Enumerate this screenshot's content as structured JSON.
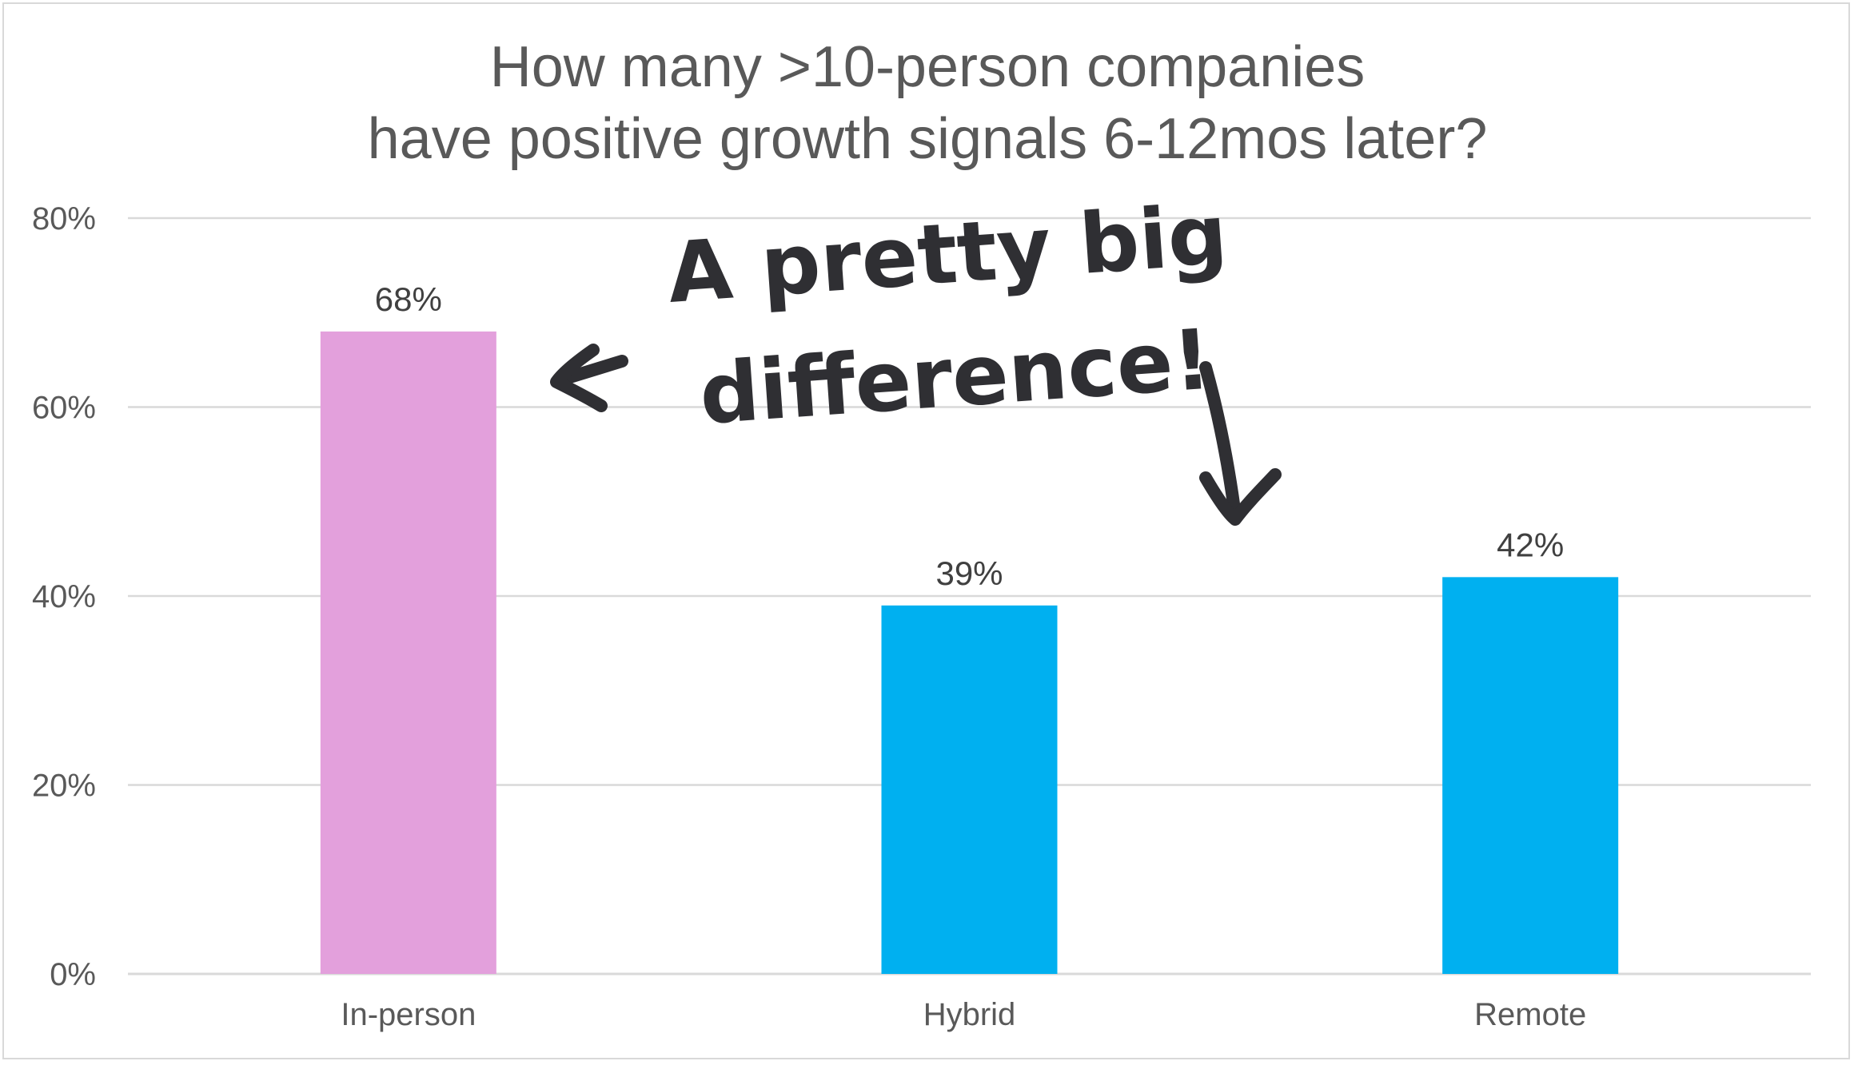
{
  "chart_data": {
    "type": "bar",
    "title_lines": [
      "How many >10-person companies",
      "have positive growth signals 6-12mos later?"
    ],
    "categories": [
      "In-person",
      "Hybrid",
      "Remote"
    ],
    "values": [
      68,
      39,
      42
    ],
    "data_labels": [
      "68%",
      "39%",
      "42%"
    ],
    "bar_colors": [
      "#e3a0dc",
      "#00b0f0",
      "#00b0f0"
    ],
    "ylim": [
      0,
      80
    ],
    "yticks": [
      0,
      20,
      40,
      60,
      80
    ],
    "ytick_labels": [
      "0%",
      "20%",
      "40%",
      "60%",
      "80%"
    ],
    "grid": true,
    "legend": "none",
    "annotation": {
      "lines": [
        "A pretty big",
        "difference!"
      ],
      "color": "#2f2f33",
      "arrows": [
        "left-arrow-icon",
        "down-arrow-icon"
      ]
    }
  }
}
